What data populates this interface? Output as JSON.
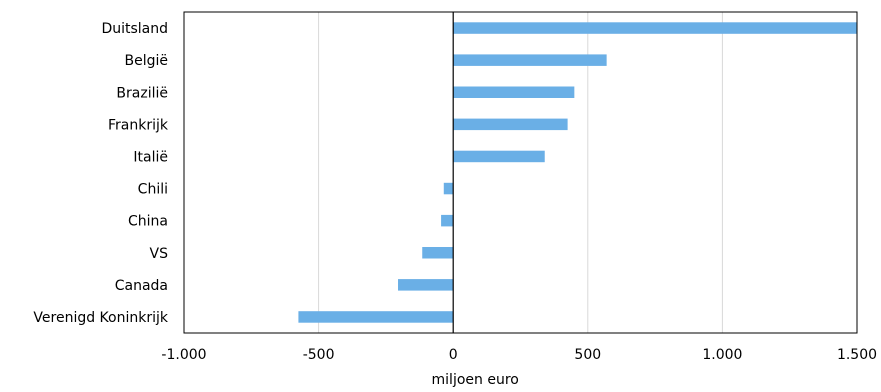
{
  "chart_data": {
    "type": "bar",
    "orientation": "horizontal",
    "categories": [
      "Duitsland",
      "België",
      "Brazilië",
      "Frankrijk",
      "Italië",
      "Chili",
      "China",
      "VS",
      "Canada",
      "Verenigd Koninkrijk"
    ],
    "values": [
      1505,
      570,
      450,
      425,
      340,
      -35,
      -45,
      -115,
      -205,
      -575
    ],
    "xlabel": "miljoen euro",
    "ylabel": "",
    "title": "",
    "xlim": [
      -1000,
      1500
    ],
    "xticks": [
      -1000,
      -500,
      0,
      500,
      1000,
      1500
    ],
    "xtick_labels": [
      "-1.000",
      "-500",
      "0",
      "500",
      "1.000",
      "1.500"
    ],
    "grid": "vertical",
    "bar_color": "#6aafe6",
    "legend": "none"
  }
}
